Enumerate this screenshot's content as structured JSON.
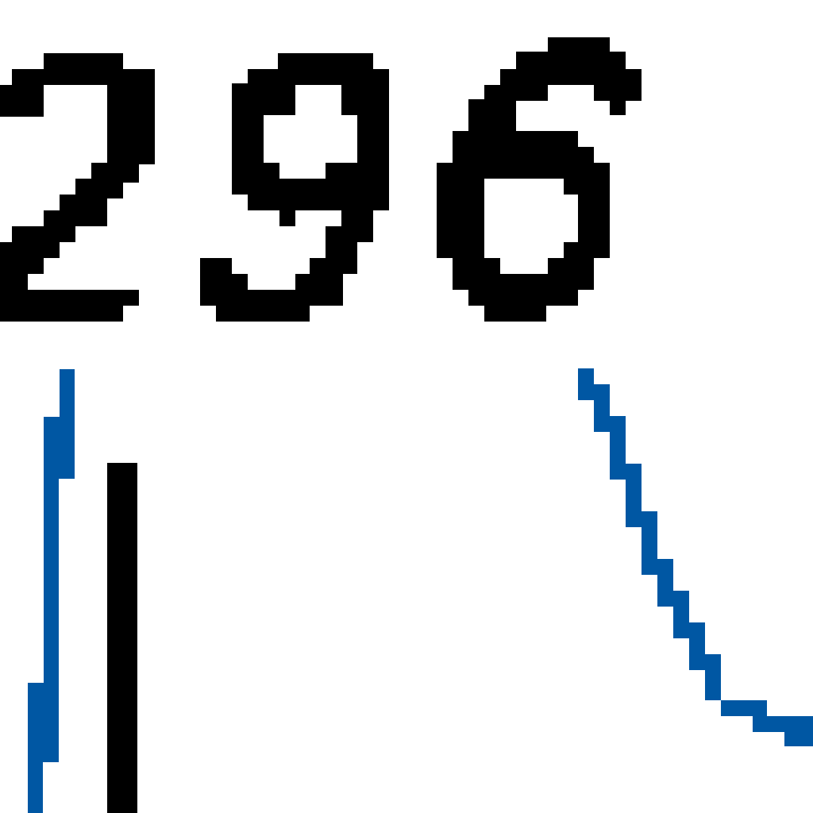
{
  "number": {
    "text": "296"
  },
  "colors": {
    "digits": "#000000",
    "black_line": "#000000",
    "accent_line": "#0057A3",
    "background": "#FFFFFF"
  }
}
